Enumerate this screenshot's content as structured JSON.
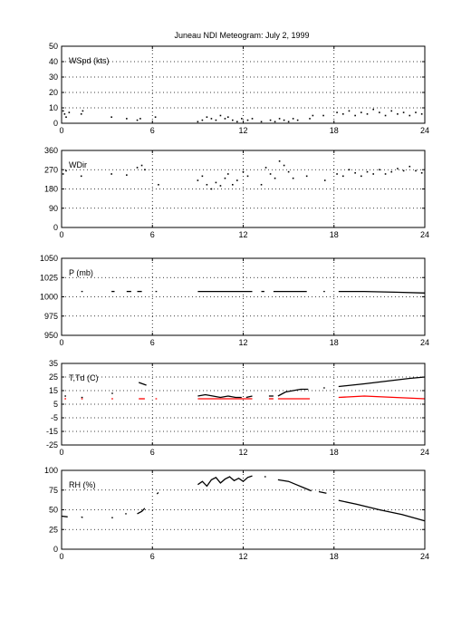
{
  "title": "Juneau NDI Meteogram:      July  2, 1999",
  "chart_data": [
    {
      "type": "scatter",
      "ylabel": "WSpd (kts)",
      "xlim": [
        0,
        24
      ],
      "ylim": [
        0,
        50
      ],
      "xticks": [
        0,
        6,
        12,
        18,
        24
      ],
      "yticks": [
        0,
        10,
        20,
        30,
        40,
        50
      ],
      "grid": true,
      "series": [
        {
          "color": "#000000",
          "marker": "dot",
          "points": [
            [
              0.1,
              8
            ],
            [
              0.2,
              6
            ],
            [
              0.3,
              4
            ],
            [
              0.5,
              7
            ],
            [
              1.3,
              6
            ],
            [
              1.4,
              8
            ],
            [
              3.3,
              4
            ],
            [
              4.3,
              3
            ],
            [
              5.0,
              2
            ],
            [
              5.2,
              3
            ],
            [
              6.2,
              4
            ],
            [
              9.0,
              1
            ],
            [
              9.3,
              2
            ],
            [
              9.6,
              4
            ],
            [
              9.9,
              3
            ],
            [
              10.2,
              2
            ],
            [
              10.5,
              5
            ],
            [
              10.8,
              3
            ],
            [
              11.0,
              4
            ],
            [
              11.3,
              2
            ],
            [
              11.6,
              1
            ],
            [
              11.9,
              3
            ],
            [
              12.3,
              2
            ],
            [
              12.6,
              3
            ],
            [
              13.2,
              1
            ],
            [
              13.8,
              2
            ],
            [
              14.1,
              1
            ],
            [
              14.4,
              3
            ],
            [
              14.7,
              2
            ],
            [
              15.0,
              1
            ],
            [
              15.3,
              3
            ],
            [
              15.6,
              2
            ],
            [
              16.4,
              3
            ],
            [
              16.6,
              5
            ],
            [
              17.3,
              5
            ],
            [
              18.2,
              7
            ],
            [
              18.6,
              6
            ],
            [
              19.0,
              8
            ],
            [
              19.4,
              5
            ],
            [
              19.8,
              7
            ],
            [
              20.2,
              6
            ],
            [
              20.6,
              9
            ],
            [
              21.0,
              7
            ],
            [
              21.4,
              5
            ],
            [
              21.8,
              8
            ],
            [
              22.2,
              6
            ],
            [
              22.6,
              7
            ],
            [
              23.0,
              5
            ],
            [
              23.4,
              7
            ],
            [
              23.8,
              6
            ]
          ]
        }
      ]
    },
    {
      "type": "scatter",
      "ylabel": "WDir",
      "xlim": [
        0,
        24
      ],
      "ylim": [
        0,
        360
      ],
      "xticks": [
        0,
        6,
        12,
        18,
        24
      ],
      "yticks": [
        0,
        90,
        180,
        270,
        360
      ],
      "grid": true,
      "series": [
        {
          "color": "#000000",
          "marker": "dot",
          "points": [
            [
              0.1,
              250
            ],
            [
              0.3,
              265
            ],
            [
              1.3,
              240
            ],
            [
              3.3,
              250
            ],
            [
              4.3,
              245
            ],
            [
              5.0,
              280
            ],
            [
              5.3,
              290
            ],
            [
              5.5,
              270
            ],
            [
              6.4,
              200
            ],
            [
              9.0,
              220
            ],
            [
              9.3,
              240
            ],
            [
              9.6,
              200
            ],
            [
              9.9,
              180
            ],
            [
              10.2,
              210
            ],
            [
              10.5,
              195
            ],
            [
              10.8,
              230
            ],
            [
              11.0,
              250
            ],
            [
              11.3,
              200
            ],
            [
              11.6,
              220
            ],
            [
              12.0,
              260
            ],
            [
              12.3,
              240
            ],
            [
              13.2,
              200
            ],
            [
              13.5,
              280
            ],
            [
              13.8,
              250
            ],
            [
              14.1,
              230
            ],
            [
              14.4,
              310
            ],
            [
              14.7,
              290
            ],
            [
              15.0,
              260
            ],
            [
              15.3,
              230
            ],
            [
              16.2,
              240
            ],
            [
              17.4,
              220
            ],
            [
              18.2,
              250
            ],
            [
              18.6,
              240
            ],
            [
              19.0,
              270
            ],
            [
              19.4,
              255
            ],
            [
              19.8,
              240
            ],
            [
              20.2,
              260
            ],
            [
              20.6,
              250
            ],
            [
              21.0,
              270
            ],
            [
              21.4,
              250
            ],
            [
              21.8,
              260
            ],
            [
              22.2,
              275
            ],
            [
              22.6,
              265
            ],
            [
              23.0,
              285
            ],
            [
              23.4,
              265
            ],
            [
              23.8,
              255
            ]
          ]
        }
      ]
    },
    {
      "type": "line",
      "ylabel": "P (mb)",
      "xlim": [
        0,
        24
      ],
      "ylim": [
        950,
        1050
      ],
      "xticks": [
        0,
        6,
        12,
        18,
        24
      ],
      "yticks": [
        950,
        975,
        1000,
        1025,
        1050
      ],
      "grid": true,
      "series": [
        {
          "color": "#000000",
          "segments": [
            [
              [
                1.3,
                1007
              ],
              [
                1.4,
                1007
              ]
            ],
            [
              [
                3.3,
                1007
              ],
              [
                3.5,
                1007
              ]
            ],
            [
              [
                4.3,
                1007
              ],
              [
                4.6,
                1007
              ]
            ],
            [
              [
                5.0,
                1007
              ],
              [
                5.3,
                1007
              ]
            ],
            [
              [
                6.2,
                1007
              ],
              [
                6.3,
                1007
              ]
            ],
            [
              [
                9.0,
                1007
              ],
              [
                12.6,
                1007
              ]
            ],
            [
              [
                13.2,
                1007
              ],
              [
                13.4,
                1007
              ]
            ],
            [
              [
                14.0,
                1007
              ],
              [
                16.2,
                1007
              ]
            ],
            [
              [
                17.3,
                1007
              ],
              [
                17.4,
                1007
              ]
            ],
            [
              [
                18.3,
                1007
              ],
              [
                20.0,
                1007
              ],
              [
                22.0,
                1006
              ],
              [
                24.0,
                1005
              ]
            ]
          ]
        }
      ]
    },
    {
      "type": "line",
      "ylabel": "T,Td (C)",
      "xlim": [
        0,
        24
      ],
      "ylim": [
        -25,
        35
      ],
      "xticks": [
        0,
        6,
        12,
        18,
        24
      ],
      "yticks": [
        -25,
        -15,
        -5,
        5,
        15,
        25,
        35
      ],
      "grid": true,
      "series": [
        {
          "color": "#000000",
          "segments": [
            [
              [
                0.2,
                11
              ],
              [
                0.3,
                11
              ]
            ],
            [
              [
                1.3,
                10
              ],
              [
                1.4,
                10
              ]
            ],
            [
              [
                3.3,
                13
              ],
              [
                3.4,
                13
              ]
            ],
            [
              [
                5.1,
                21
              ],
              [
                5.6,
                19
              ]
            ],
            [
              [
                9.0,
                11
              ],
              [
                9.5,
                12
              ],
              [
                10.0,
                11
              ],
              [
                10.5,
                10
              ],
              [
                11.0,
                11
              ],
              [
                11.5,
                10
              ],
              [
                11.9,
                10
              ]
            ],
            [
              [
                12.2,
                10
              ],
              [
                12.6,
                11
              ]
            ],
            [
              [
                13.7,
                11
              ],
              [
                14.0,
                11
              ]
            ],
            [
              [
                14.3,
                11
              ],
              [
                14.8,
                14
              ],
              [
                15.3,
                15
              ],
              [
                15.8,
                16
              ],
              [
                16.3,
                16
              ]
            ],
            [
              [
                17.3,
                17
              ],
              [
                17.4,
                17
              ]
            ],
            [
              [
                18.3,
                18
              ],
              [
                20.0,
                20
              ],
              [
                21.5,
                22
              ],
              [
                23.0,
                24
              ],
              [
                24.0,
                25
              ]
            ]
          ]
        },
        {
          "color": "#ff0000",
          "segments": [
            [
              [
                0.2,
                9
              ],
              [
                0.3,
                9
              ]
            ],
            [
              [
                1.3,
                9
              ],
              [
                1.4,
                9
              ]
            ],
            [
              [
                3.3,
                9
              ],
              [
                3.4,
                9
              ]
            ],
            [
              [
                5.1,
                9
              ],
              [
                5.5,
                9
              ]
            ],
            [
              [
                6.2,
                9
              ],
              [
                6.3,
                9
              ]
            ],
            [
              [
                9.0,
                9
              ],
              [
                12.6,
                9
              ]
            ],
            [
              [
                13.7,
                9
              ],
              [
                14.0,
                9
              ]
            ],
            [
              [
                14.3,
                9
              ],
              [
                16.4,
                9
              ]
            ],
            [
              [
                18.3,
                10
              ],
              [
                20.0,
                11
              ],
              [
                22.0,
                10
              ],
              [
                24.0,
                9
              ]
            ]
          ]
        }
      ]
    },
    {
      "type": "line",
      "ylabel": "RH (%)",
      "xlim": [
        0,
        24
      ],
      "ylim": [
        0,
        100
      ],
      "xticks": [
        0,
        6,
        12,
        18,
        24
      ],
      "yticks": [
        0,
        25,
        50,
        75,
        100
      ],
      "grid": true,
      "series": [
        {
          "color": "#000000",
          "segments": [
            [
              [
                0.0,
                42
              ],
              [
                0.4,
                41
              ]
            ],
            [
              [
                1.3,
                41
              ],
              [
                1.4,
                40
              ]
            ],
            [
              [
                3.3,
                40
              ],
              [
                3.4,
                40
              ]
            ],
            [
              [
                4.2,
                45
              ],
              [
                4.3,
                45
              ]
            ],
            [
              [
                5.0,
                45
              ],
              [
                5.3,
                48
              ],
              [
                5.5,
                52
              ]
            ],
            [
              [
                6.3,
                70
              ],
              [
                6.4,
                72
              ]
            ],
            [
              [
                9.0,
                82
              ],
              [
                9.3,
                86
              ],
              [
                9.6,
                80
              ],
              [
                9.9,
                88
              ],
              [
                10.2,
                91
              ],
              [
                10.5,
                84
              ],
              [
                10.8,
                89
              ],
              [
                11.1,
                92
              ],
              [
                11.4,
                87
              ],
              [
                11.7,
                90
              ],
              [
                12.0,
                86
              ],
              [
                12.3,
                91
              ],
              [
                12.6,
                93
              ]
            ],
            [
              [
                13.4,
                92
              ],
              [
                13.5,
                92
              ]
            ],
            [
              [
                14.3,
                88
              ],
              [
                15.0,
                86
              ],
              [
                15.5,
                82
              ],
              [
                16.0,
                78
              ],
              [
                16.5,
                74
              ]
            ],
            [
              [
                17.0,
                73
              ],
              [
                17.5,
                71
              ]
            ],
            [
              [
                18.3,
                62
              ],
              [
                19.5,
                57
              ],
              [
                21.0,
                50
              ],
              [
                22.5,
                44
              ],
              [
                24.0,
                36
              ]
            ]
          ]
        }
      ]
    }
  ]
}
